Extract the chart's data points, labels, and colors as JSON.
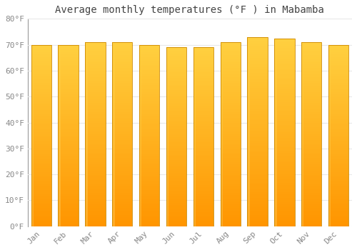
{
  "title": "Average monthly temperatures (°F ) in Mabamba",
  "months": [
    "Jan",
    "Feb",
    "Mar",
    "Apr",
    "May",
    "Jun",
    "Jul",
    "Aug",
    "Sep",
    "Oct",
    "Nov",
    "Dec"
  ],
  "values": [
    70.0,
    70.0,
    71.0,
    71.0,
    70.0,
    69.0,
    69.0,
    71.0,
    73.0,
    72.5,
    71.0,
    70.0
  ],
  "bar_color_main": "#FFAA00",
  "bar_color_light": "#FFD966",
  "bar_color_dark": "#FF8C00",
  "bar_edge_color": "#CC8800",
  "background_color": "#FFFFFF",
  "grid_color": "#E8E8E8",
  "ylim": [
    0,
    80
  ],
  "yticks": [
    0,
    10,
    20,
    30,
    40,
    50,
    60,
    70,
    80
  ],
  "title_fontsize": 10,
  "tick_fontsize": 8,
  "axis_label_color": "#888888",
  "title_color": "#444444"
}
